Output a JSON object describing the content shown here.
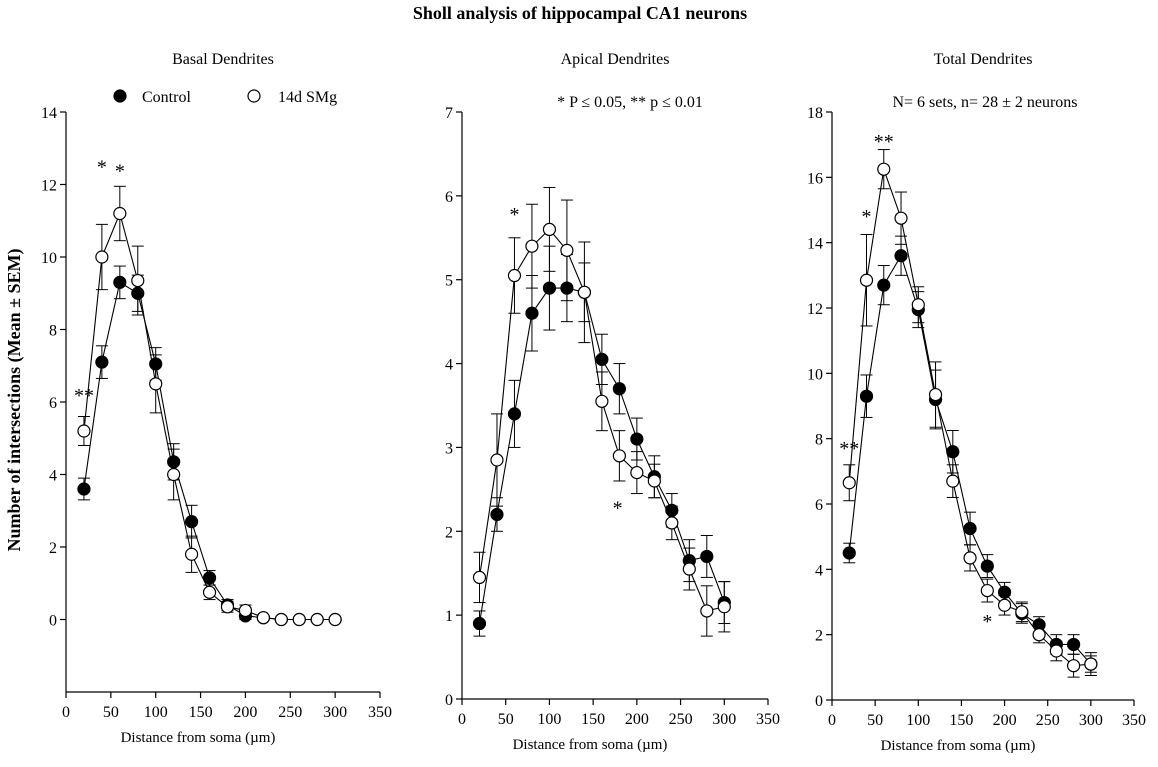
{
  "figure_title": "Sholl analysis of hippocampal CA1 neurons",
  "ylabel": "Number of intersections (Mean ± SEM)",
  "legend": {
    "control": "Control",
    "smg": "14d SMg"
  },
  "notes": {
    "significance": "* P ≤ 0.05, ** p ≤ 0.01",
    "sample": "N= 6 sets, n= 28 ± 2 neurons"
  },
  "chart_data": [
    {
      "type": "line",
      "title": "Basal Dendrites",
      "xlabel": "Distance from soma (µm)",
      "xlim": [
        0,
        350
      ],
      "ylim": [
        -2,
        14
      ],
      "xticks": [
        0,
        50,
        100,
        150,
        200,
        250,
        300,
        350
      ],
      "yticks": [
        0,
        2,
        4,
        6,
        8,
        10,
        12,
        14
      ],
      "x": [
        20,
        40,
        60,
        80,
        100,
        120,
        140,
        160,
        180,
        200,
        220,
        240,
        260,
        280,
        300
      ],
      "series": [
        {
          "name": "Control",
          "marker": "filled",
          "values": [
            3.6,
            7.1,
            9.3,
            9.0,
            7.05,
            4.35,
            2.7,
            1.15,
            0.4,
            0.1,
            0.05,
            0.0,
            0.0,
            0.0,
            0.0
          ],
          "sem": [
            0.3,
            0.45,
            0.45,
            0.5,
            0.45,
            0.5,
            0.45,
            0.2,
            0.15,
            0.1,
            0.05,
            0.05,
            0.05,
            0.05,
            0.05
          ]
        },
        {
          "name": "14d SMg",
          "marker": "open",
          "values": [
            5.2,
            10.0,
            11.2,
            9.35,
            6.5,
            4.0,
            1.8,
            0.75,
            0.35,
            0.25,
            0.05,
            0.0,
            0.0,
            0.0,
            0.0
          ],
          "sem": [
            0.4,
            0.9,
            0.75,
            0.95,
            0.8,
            0.7,
            0.5,
            0.2,
            0.15,
            0.15,
            0.05,
            0.05,
            0.05,
            0.05,
            0.05
          ]
        }
      ],
      "annotations": [
        {
          "text": "**",
          "x": 20,
          "y": 6.0
        },
        {
          "text": "*",
          "x": 40,
          "y": 12.3
        },
        {
          "text": "*",
          "x": 60,
          "y": 12.2
        }
      ]
    },
    {
      "type": "line",
      "title": "Apical Dendrites",
      "xlabel": "Distance from soma (µm)",
      "xlim": [
        0,
        350
      ],
      "ylim": [
        0,
        7
      ],
      "xticks": [
        0,
        50,
        100,
        150,
        200,
        250,
        300,
        350
      ],
      "yticks": [
        0,
        1,
        2,
        3,
        4,
        5,
        6,
        7
      ],
      "x": [
        20,
        40,
        60,
        80,
        100,
        120,
        140,
        160,
        180,
        200,
        220,
        240,
        260,
        280,
        300
      ],
      "series": [
        {
          "name": "Control",
          "marker": "filled",
          "values": [
            0.9,
            2.2,
            3.4,
            4.6,
            4.9,
            4.9,
            4.85,
            4.05,
            3.7,
            3.1,
            2.65,
            2.25,
            1.65,
            1.7,
            1.15
          ],
          "sem": [
            0.15,
            0.2,
            0.4,
            0.45,
            0.5,
            0.4,
            0.35,
            0.3,
            0.3,
            0.25,
            0.25,
            0.2,
            0.25,
            0.25,
            0.25
          ]
        },
        {
          "name": "14d SMg",
          "marker": "open",
          "values": [
            1.45,
            2.85,
            5.05,
            5.4,
            5.6,
            5.35,
            4.85,
            3.55,
            2.9,
            2.7,
            2.6,
            2.1,
            1.55,
            1.05,
            1.1
          ],
          "sem": [
            0.3,
            0.55,
            0.45,
            0.5,
            0.5,
            0.6,
            0.6,
            0.35,
            0.3,
            0.25,
            0.2,
            0.2,
            0.25,
            0.3,
            0.3
          ]
        }
      ],
      "annotations": [
        {
          "text": "*",
          "x": 60,
          "y": 5.7
        },
        {
          "text": "*",
          "x": 178,
          "y": 2.2
        }
      ]
    },
    {
      "type": "line",
      "title": "Total Dendrites",
      "xlabel": "Distance from soma (µm)",
      "xlim": [
        0,
        350
      ],
      "ylim": [
        0,
        18
      ],
      "xticks": [
        0,
        50,
        100,
        150,
        200,
        250,
        300,
        350
      ],
      "yticks": [
        0,
        2,
        4,
        6,
        8,
        10,
        12,
        14,
        16,
        18
      ],
      "x": [
        20,
        40,
        60,
        80,
        100,
        120,
        140,
        160,
        180,
        200,
        220,
        240,
        260,
        280,
        300
      ],
      "series": [
        {
          "name": "Control",
          "marker": "filled",
          "values": [
            4.5,
            9.3,
            12.7,
            13.6,
            11.95,
            9.2,
            7.6,
            5.25,
            4.1,
            3.3,
            2.65,
            2.3,
            1.7,
            1.7,
            1.1
          ],
          "sem": [
            0.3,
            0.65,
            0.6,
            0.6,
            0.55,
            0.9,
            0.65,
            0.5,
            0.35,
            0.3,
            0.3,
            0.25,
            0.3,
            0.3,
            0.25
          ]
        },
        {
          "name": "14d SMg",
          "marker": "open",
          "values": [
            6.65,
            12.85,
            16.25,
            14.75,
            12.1,
            9.35,
            6.7,
            4.35,
            3.35,
            2.9,
            2.7,
            2.0,
            1.5,
            1.05,
            1.1
          ],
          "sem": [
            0.55,
            1.4,
            0.6,
            0.8,
            0.55,
            1.0,
            0.5,
            0.4,
            0.35,
            0.3,
            0.3,
            0.25,
            0.3,
            0.35,
            0.35
          ]
        }
      ],
      "annotations": [
        {
          "text": "**",
          "x": 20,
          "y": 7.5
        },
        {
          "text": "*",
          "x": 40,
          "y": 14.6
        },
        {
          "text": "**",
          "x": 60,
          "y": 16.9
        },
        {
          "text": "*",
          "x": 180,
          "y": 2.2
        }
      ]
    }
  ]
}
